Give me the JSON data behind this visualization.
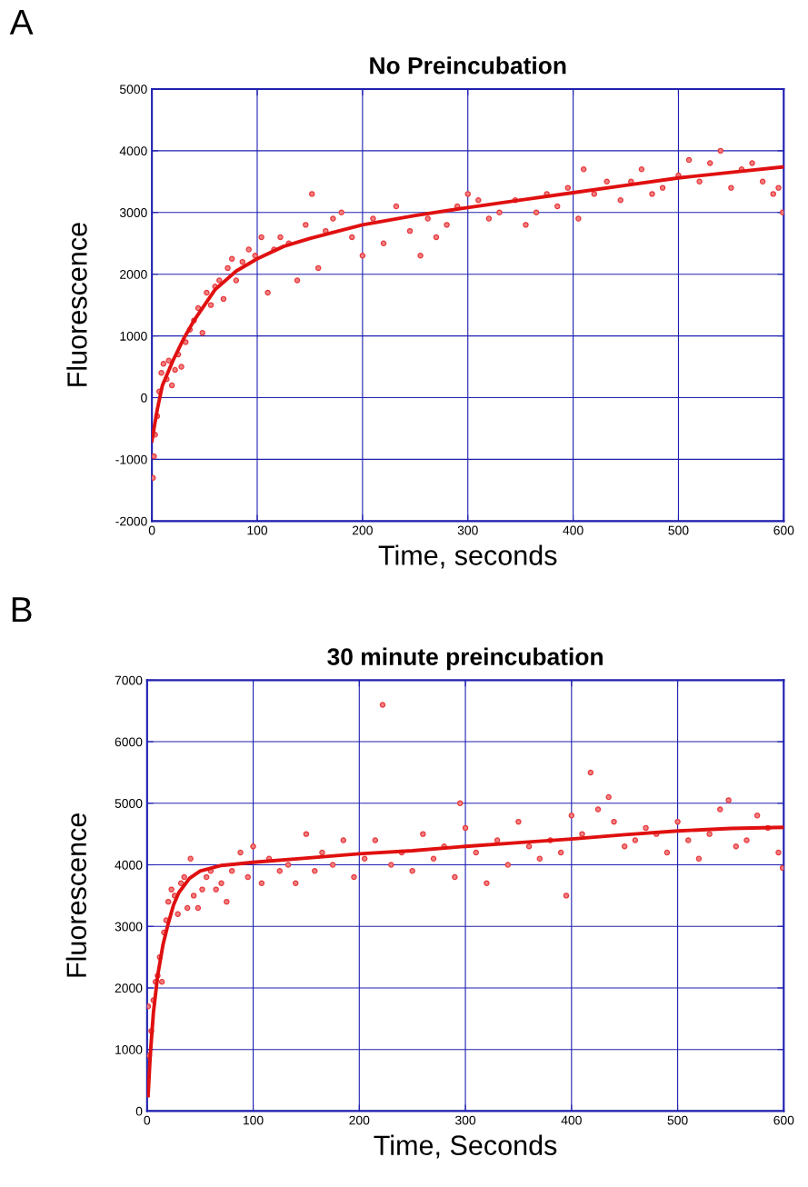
{
  "chart_data": [
    {
      "type": "scatter",
      "title": "No Preincubation",
      "xlabel": "Time, seconds",
      "ylabel": "Fluorescence",
      "annotations": [
        "A"
      ],
      "xlim": [
        0,
        600
      ],
      "ylim": [
        -2000,
        5000
      ],
      "xticks": [
        0,
        100,
        200,
        300,
        400,
        500,
        600
      ],
      "yticks": [
        -2000,
        -1000,
        0,
        1000,
        2000,
        3000,
        4000,
        5000
      ],
      "grid": true,
      "series": [
        {
          "marker": "circle",
          "color": "#e8383d",
          "x": [
            1,
            2,
            3,
            5,
            7,
            9,
            11,
            14,
            16,
            19,
            22,
            25,
            28,
            32,
            36,
            40,
            44,
            48,
            52,
            56,
            60,
            64,
            68,
            72,
            76,
            80,
            86,
            92,
            98,
            104,
            110,
            116,
            122,
            130,
            138,
            146,
            152,
            158,
            165,
            172,
            180,
            190,
            200,
            210,
            220,
            232,
            245,
            255,
            262,
            270,
            280,
            290,
            300,
            310,
            320,
            330,
            345,
            355,
            365,
            375,
            385,
            395,
            405,
            410,
            420,
            432,
            445,
            455,
            465,
            475,
            485,
            500,
            510,
            520,
            530,
            540,
            550,
            560,
            570,
            580,
            590,
            595,
            599
          ],
          "values": [
            -1300,
            -950,
            -600,
            -300,
            100,
            400,
            550,
            300,
            600,
            200,
            450,
            700,
            500,
            900,
            1100,
            1250,
            1450,
            1050,
            1700,
            1500,
            1800,
            1900,
            1600,
            2100,
            2250,
            1900,
            2200,
            2400,
            2300,
            2600,
            1700,
            2400,
            2600,
            2500,
            1900,
            2800,
            3300,
            2100,
            2700,
            2900,
            3000,
            2600,
            2300,
            2900,
            2500,
            3100,
            2700,
            2300,
            2900,
            2600,
            2800,
            3100,
            3300,
            3200,
            2900,
            3000,
            3200,
            2800,
            3000,
            3300,
            3100,
            3400,
            2900,
            3700,
            3300,
            3500,
            3200,
            3500,
            3700,
            3300,
            3400,
            3600,
            3850,
            3500,
            3800,
            4000,
            3400,
            3700,
            3800,
            3500,
            3300,
            3400,
            3000
          ]
        },
        {
          "type": "line",
          "marker": "none",
          "color": "#e01010",
          "x": [
            0,
            5,
            10,
            20,
            30,
            40,
            50,
            60,
            80,
            100,
            125,
            150,
            200,
            250,
            300,
            350,
            400,
            450,
            500,
            550,
            600
          ],
          "values": [
            -700,
            -200,
            200,
            600,
            950,
            1250,
            1500,
            1750,
            2050,
            2250,
            2450,
            2580,
            2800,
            2950,
            3080,
            3200,
            3320,
            3440,
            3560,
            3650,
            3740
          ]
        }
      ]
    },
    {
      "type": "scatter",
      "title": "30 minute preincubation",
      "xlabel": "Time, Seconds",
      "ylabel": "Fluorescence",
      "annotations": [
        "B"
      ],
      "xlim": [
        0,
        600
      ],
      "ylim": [
        0,
        7000
      ],
      "xticks": [
        0,
        100,
        200,
        300,
        400,
        500,
        600
      ],
      "yticks": [
        0,
        1000,
        2000,
        3000,
        4000,
        5000,
        6000,
        7000
      ],
      "grid": true,
      "series": [
        {
          "marker": "circle",
          "color": "#e8383d",
          "x": [
            1,
            2,
            4,
            6,
            8,
            10,
            12,
            14,
            16,
            18,
            20,
            23,
            26,
            29,
            32,
            35,
            38,
            41,
            44,
            48,
            52,
            56,
            60,
            65,
            70,
            75,
            80,
            88,
            95,
            100,
            108,
            115,
            125,
            133,
            140,
            150,
            158,
            165,
            175,
            185,
            195,
            205,
            215,
            222,
            230,
            240,
            250,
            260,
            270,
            280,
            290,
            295,
            300,
            310,
            320,
            330,
            340,
            350,
            360,
            370,
            380,
            390,
            395,
            400,
            410,
            418,
            425,
            435,
            440,
            450,
            460,
            470,
            480,
            490,
            500,
            510,
            520,
            530,
            540,
            548,
            555,
            565,
            575,
            585,
            595,
            599
          ],
          "values": [
            1700,
            900,
            1300,
            1800,
            2100,
            2200,
            2500,
            2100,
            2900,
            3100,
            3400,
            3600,
            3500,
            3200,
            3700,
            3800,
            3300,
            4100,
            3500,
            3300,
            3600,
            3800,
            3900,
            3600,
            3700,
            3400,
            3900,
            4200,
            3800,
            4300,
            3700,
            4100,
            3900,
            4000,
            3700,
            4500,
            3900,
            4200,
            4000,
            4400,
            3800,
            4100,
            4400,
            6600,
            4000,
            4200,
            3900,
            4500,
            4100,
            4300,
            3800,
            5000,
            4600,
            4200,
            3700,
            4400,
            4000,
            4700,
            4300,
            4100,
            4400,
            4200,
            3500,
            4800,
            4500,
            5500,
            4900,
            5100,
            4700,
            4300,
            4400,
            4600,
            4500,
            4200,
            4700,
            4400,
            4100,
            4500,
            4900,
            5050,
            4300,
            4400,
            4800,
            4600,
            4200,
            3950
          ]
        },
        {
          "type": "line",
          "marker": "none",
          "color": "#e01010",
          "x": [
            1,
            3,
            6,
            10,
            15,
            20,
            25,
            30,
            40,
            50,
            70,
            100,
            150,
            200,
            250,
            300,
            350,
            400,
            450,
            500,
            550,
            600
          ],
          "values": [
            250,
            900,
            1600,
            2200,
            2700,
            3050,
            3350,
            3550,
            3780,
            3900,
            3990,
            4040,
            4110,
            4180,
            4230,
            4300,
            4360,
            4420,
            4490,
            4550,
            4590,
            4610
          ]
        }
      ]
    }
  ]
}
